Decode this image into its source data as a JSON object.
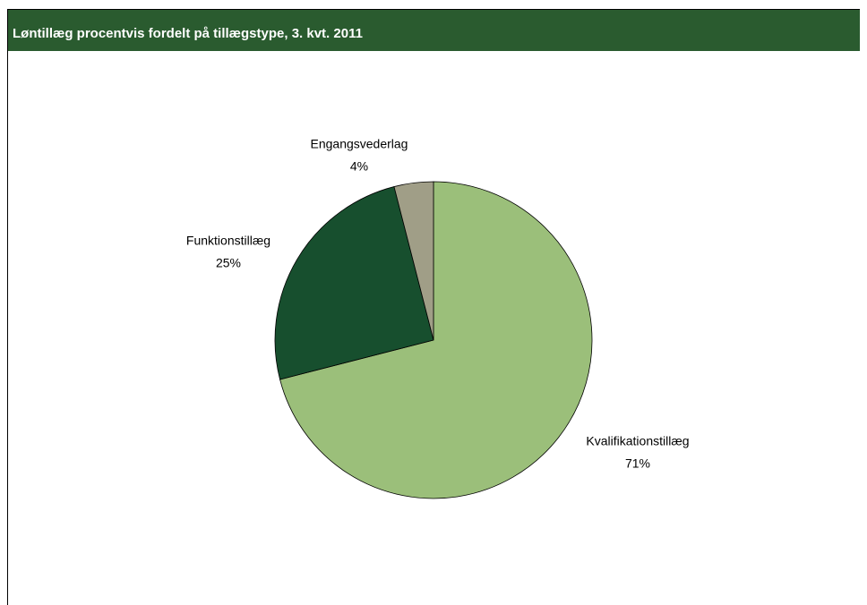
{
  "chart_data": {
    "type": "pie",
    "title": "Løntillæg procentvis fordelt på tillægstype, 3. kvt. 2011",
    "categories": [
      "Kvalifikationstillæg",
      "Funktionstillæg",
      "Engangsvederlag"
    ],
    "values": [
      71,
      25,
      4
    ],
    "value_labels": [
      "71%",
      "25%",
      "4%"
    ],
    "colors": [
      "#9bbf7a",
      "#174f2e",
      "#a09e87"
    ]
  }
}
